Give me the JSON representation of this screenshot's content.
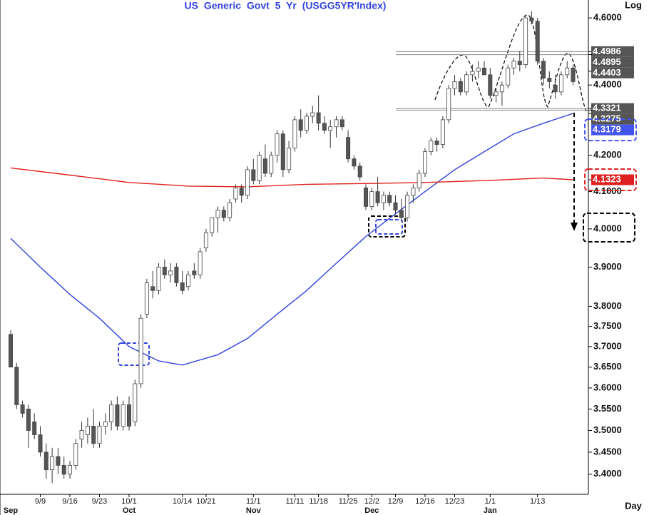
{
  "chart_data": {
    "type": "candlestick",
    "title": "US Generic Govt 5 Yr (USGG5YR'Index)",
    "y_axis_label": "Log",
    "x_axis_label": "Day",
    "log_scale": true,
    "up_color": "#ffffff",
    "down_color": "#555555",
    "categories": [
      null,
      null,
      null,
      null,
      null,
      "9/9",
      null,
      null,
      null,
      null,
      "9/16",
      null,
      null,
      null,
      null,
      "9/23",
      null,
      null,
      null,
      null,
      "10/1",
      null,
      null,
      null,
      null,
      null,
      null,
      null,
      null,
      "10/14",
      null,
      null,
      null,
      "10/21",
      null,
      null,
      null,
      null,
      null,
      null,
      null,
      "11/1",
      null,
      null,
      null,
      null,
      null,
      null,
      "11/11",
      null,
      null,
      null,
      "11/18",
      null,
      null,
      null,
      null,
      "11/25",
      null,
      null,
      null,
      "12/2",
      null,
      null,
      null,
      "12/9",
      null,
      null,
      null,
      null,
      "12/16",
      null,
      null,
      null,
      null,
      "12/23",
      null,
      null,
      null,
      null,
      null,
      "1/1",
      null,
      null,
      null,
      null,
      null,
      null,
      null,
      "1/13",
      null,
      null,
      null,
      null,
      null,
      null
    ],
    "months": [
      "Sep",
      null,
      null,
      null,
      null,
      null,
      null,
      null,
      null,
      null,
      null,
      null,
      null,
      null,
      null,
      null,
      null,
      null,
      null,
      null,
      "Oct",
      null,
      null,
      null,
      null,
      null,
      null,
      null,
      null,
      null,
      null,
      null,
      null,
      null,
      null,
      null,
      null,
      null,
      null,
      null,
      null,
      "Nov",
      null,
      null,
      null,
      null,
      null,
      null,
      null,
      null,
      null,
      null,
      null,
      null,
      null,
      null,
      null,
      null,
      null,
      null,
      null,
      "Dec",
      null,
      null,
      null,
      null,
      null,
      null,
      null,
      null,
      null,
      null,
      null,
      null,
      null,
      null,
      null,
      null,
      null,
      null,
      null,
      "Jan",
      null,
      null,
      null,
      null,
      null,
      null,
      null,
      null,
      null,
      null,
      null,
      null,
      null,
      null
    ],
    "open": [
      3.73,
      3.65,
      3.56,
      3.55,
      3.52,
      3.49,
      3.45,
      3.41,
      3.44,
      3.42,
      3.4,
      3.42,
      3.48,
      3.49,
      3.51,
      3.47,
      3.51,
      3.52,
      3.56,
      3.51,
      3.56,
      3.52,
      3.61,
      3.78,
      3.85,
      3.84,
      3.9,
      3.88,
      3.9,
      3.86,
      3.85,
      3.89,
      3.88,
      3.95,
      3.99,
      4.03,
      4.05,
      4.03,
      4.08,
      4.11,
      4.09,
      4.16,
      4.13,
      4.19,
      4.15,
      4.2,
      4.26,
      4.16,
      4.22,
      4.3,
      4.27,
      4.31,
      4.32,
      4.29,
      4.27,
      4.28,
      4.3,
      4.25,
      4.19,
      4.17,
      4.11,
      4.06,
      4.1,
      4.07,
      4.09,
      4.07,
      4.05,
      4.03,
      4.09,
      4.11,
      4.15,
      4.21,
      4.24,
      4.23,
      4.3,
      4.39,
      4.41,
      4.38,
      4.43,
      4.44,
      4.45,
      4.43,
      4.37,
      4.38,
      4.4,
      4.45,
      4.47,
      4.46,
      4.6,
      4.59,
      4.47,
      4.42,
      4.4,
      4.38,
      4.43,
      4.45
    ],
    "high": [
      3.74,
      3.66,
      3.57,
      3.56,
      3.54,
      3.51,
      3.47,
      3.46,
      3.46,
      3.44,
      3.43,
      3.48,
      3.52,
      3.53,
      3.55,
      3.52,
      3.54,
      3.57,
      3.58,
      3.57,
      3.58,
      3.62,
      3.78,
      3.87,
      3.89,
      3.91,
      3.92,
      3.91,
      3.91,
      3.89,
      3.89,
      3.91,
      3.95,
      4.0,
      4.03,
      4.06,
      4.06,
      4.08,
      4.12,
      4.12,
      4.17,
      4.19,
      4.21,
      4.23,
      4.21,
      4.27,
      4.27,
      4.24,
      4.31,
      4.33,
      4.32,
      4.34,
      4.37,
      4.31,
      4.3,
      4.31,
      4.31,
      4.27,
      4.2,
      4.18,
      4.12,
      4.11,
      4.14,
      4.1,
      4.1,
      4.09,
      4.08,
      4.1,
      4.12,
      4.16,
      4.22,
      4.25,
      4.25,
      4.31,
      4.4,
      4.43,
      4.42,
      4.44,
      4.46,
      4.47,
      4.47,
      4.45,
      4.39,
      4.41,
      4.46,
      4.48,
      4.5,
      4.61,
      4.62,
      4.6,
      4.48,
      4.44,
      4.43,
      4.44,
      4.47,
      4.46
    ],
    "low": [
      3.66,
      3.55,
      3.53,
      3.46,
      3.48,
      3.44,
      3.39,
      3.38,
      3.4,
      3.39,
      3.39,
      3.41,
      3.46,
      3.47,
      3.46,
      3.46,
      3.49,
      3.5,
      3.5,
      3.5,
      3.5,
      3.51,
      3.6,
      3.77,
      3.82,
      3.83,
      3.87,
      3.86,
      3.85,
      3.83,
      3.84,
      3.87,
      3.87,
      3.94,
      3.98,
      3.99,
      4.02,
      4.02,
      4.07,
      4.07,
      4.08,
      4.12,
      4.12,
      4.14,
      4.14,
      4.18,
      4.14,
      4.15,
      4.21,
      4.25,
      4.26,
      4.29,
      4.27,
      4.26,
      4.22,
      4.25,
      4.27,
      4.18,
      4.16,
      4.13,
      4.05,
      4.05,
      4.06,
      4.05,
      4.06,
      4.04,
      4.02,
      4.02,
      4.07,
      4.1,
      4.14,
      4.2,
      4.21,
      4.22,
      4.29,
      4.37,
      4.37,
      4.37,
      4.41,
      4.42,
      4.43,
      4.36,
      4.35,
      4.34,
      4.39,
      4.43,
      4.44,
      4.45,
      4.58,
      4.46,
      4.4,
      4.39,
      4.36,
      4.37,
      4.42,
      4.4
    ],
    "close": [
      3.65,
      3.56,
      3.54,
      3.5,
      3.49,
      3.45,
      3.41,
      3.44,
      3.42,
      3.4,
      3.42,
      3.47,
      3.5,
      3.51,
      3.47,
      3.51,
      3.52,
      3.56,
      3.51,
      3.56,
      3.51,
      3.61,
      3.77,
      3.86,
      3.84,
      3.9,
      3.88,
      3.89,
      3.86,
      3.84,
      3.88,
      3.88,
      3.94,
      3.99,
      4.03,
      4.05,
      4.03,
      4.07,
      4.11,
      4.09,
      4.16,
      4.13,
      4.2,
      4.15,
      4.2,
      4.26,
      4.16,
      4.22,
      4.3,
      4.27,
      4.31,
      4.32,
      4.29,
      4.27,
      4.28,
      4.3,
      4.28,
      4.19,
      4.17,
      4.14,
      4.06,
      4.1,
      4.07,
      4.09,
      4.07,
      4.05,
      4.03,
      4.09,
      4.11,
      4.15,
      4.21,
      4.24,
      4.23,
      4.3,
      4.39,
      4.41,
      4.38,
      4.43,
      4.44,
      4.45,
      4.43,
      4.37,
      4.38,
      4.4,
      4.45,
      4.47,
      4.46,
      4.6,
      4.59,
      4.47,
      4.42,
      4.41,
      4.38,
      4.43,
      4.45,
      4.41
    ],
    "lines": [
      {
        "color": "#3344dd",
        "x": [
          0,
          5,
          10,
          15,
          20,
          25,
          29,
          35,
          40,
          45,
          50,
          55,
          60,
          65,
          70,
          75,
          80,
          85,
          90,
          95
        ],
        "values": [
          3.975,
          3.9,
          3.83,
          3.77,
          3.7,
          3.665,
          3.655,
          3.68,
          3.72,
          3.78,
          3.84,
          3.91,
          3.98,
          4.04,
          4.1,
          4.16,
          4.21,
          4.26,
          4.29,
          4.318
        ]
      },
      {
        "color": "#e0201a",
        "x": [
          0,
          10,
          20,
          30,
          40,
          50,
          60,
          70,
          80,
          90,
          95
        ],
        "values": [
          4.165,
          4.145,
          4.125,
          4.115,
          4.113,
          4.12,
          4.122,
          4.125,
          4.13,
          4.137,
          4.1323
        ]
      }
    ],
    "ylim": [
      3.355,
      4.655
    ],
    "yticks": [
      {
        "value": 4.6,
        "label": "4.6000"
      },
      {
        "value": 4.4,
        "label": "4.4000"
      },
      {
        "value": 4.2,
        "label": "4.2000"
      },
      {
        "value": 4.1,
        "label": "4.1000"
      },
      {
        "value": 4.0,
        "label": "4.0000"
      },
      {
        "value": 3.9,
        "label": "3.9000"
      },
      {
        "value": 3.8,
        "label": "3.8000"
      },
      {
        "value": 3.75,
        "label": "3.7500"
      },
      {
        "value": 3.7,
        "label": "3.7000"
      },
      {
        "value": 3.65,
        "label": "3.6500"
      },
      {
        "value": 3.6,
        "label": "3.6000"
      },
      {
        "value": 3.55,
        "label": "3.5500"
      },
      {
        "value": 3.5,
        "label": "3.5000"
      },
      {
        "value": 3.45,
        "label": "3.4500"
      },
      {
        "value": 3.4,
        "label": "3.4000"
      }
    ],
    "levels": [
      {
        "value": 4.4986,
        "color": "#555555",
        "line": true,
        "outlined": false
      },
      {
        "value": 4.4895,
        "color": "#555555",
        "line": true,
        "outlined": false
      },
      {
        "value": 4.4403,
        "color": "#555555",
        "line": false,
        "outlined": false
      },
      {
        "value": 4.3321,
        "color": "#555555",
        "line": true,
        "outlined": false
      },
      {
        "value": 4.3275,
        "color": "#555555",
        "line": true,
        "outlined": false
      },
      {
        "value": 4.3179,
        "color": "#4455ee",
        "line": false,
        "outlined": true
      },
      {
        "value": 4.1323,
        "color": "#e02020",
        "line": false,
        "outlined": true
      }
    ]
  }
}
